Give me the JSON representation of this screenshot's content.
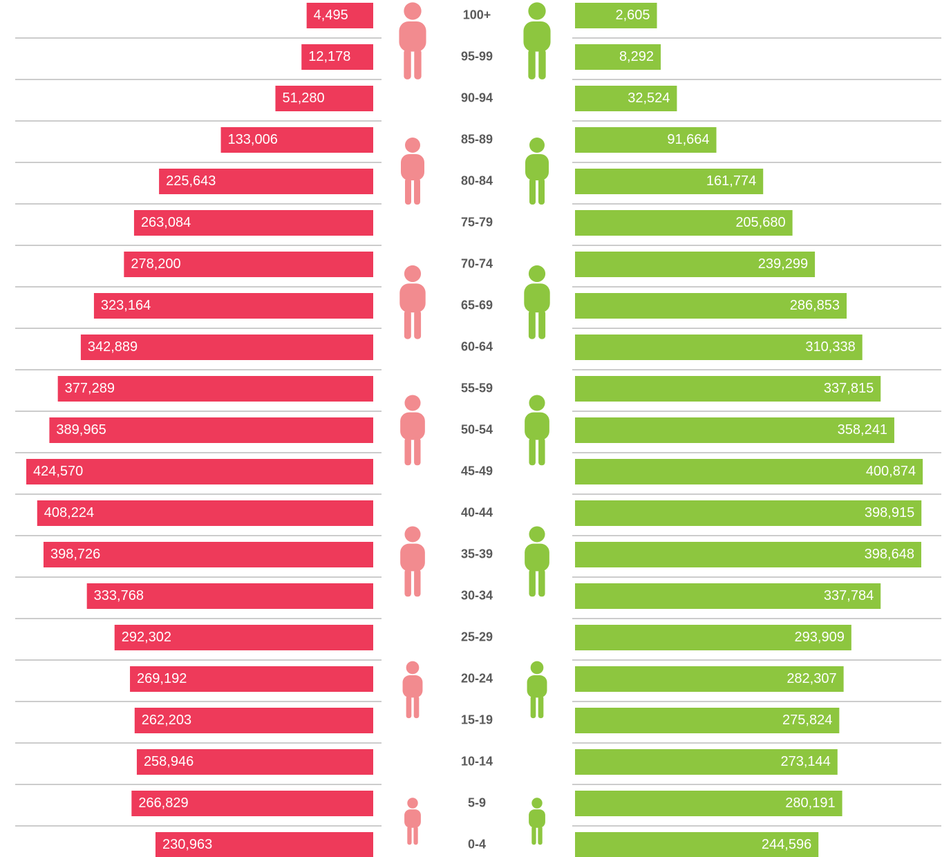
{
  "chart_data": {
    "type": "bar",
    "categories": [
      "100+",
      "95-99",
      "90-94",
      "85-89",
      "80-84",
      "75-79",
      "70-74",
      "65-69",
      "60-64",
      "55-59",
      "50-54",
      "45-49",
      "40-44",
      "35-39",
      "30-34",
      "25-29",
      "20-24",
      "15-19",
      "10-14",
      "5-9",
      "0-4"
    ],
    "series": [
      {
        "color": "#ee3a5a",
        "values": [
          4495,
          12178,
          51280,
          133006,
          225643,
          263084,
          278200,
          323164,
          342889,
          377289,
          389965,
          424570,
          408224,
          398726,
          333768,
          292302,
          269192,
          262203,
          258946,
          266829,
          230963
        ],
        "value_labels": [
          "4,495",
          "12,178",
          "51,280",
          "133,006",
          "225,643",
          "263,084",
          "278,200",
          "323,164",
          "342,889",
          "377,289",
          "389,965",
          "424,570",
          "408,224",
          "398,726",
          "333,768",
          "292,302",
          "269,192",
          "262,203",
          "258,946",
          "266,829",
          "230,963"
        ]
      },
      {
        "color": "#8dc63f",
        "values": [
          2605,
          8292,
          32524,
          91664,
          161774,
          205680,
          239299,
          286853,
          310338,
          337815,
          358241,
          400874,
          398915,
          398648,
          337784,
          293909,
          282307,
          275824,
          273144,
          280191,
          244596
        ],
        "value_labels": [
          "2,605",
          "8,292",
          "32,524",
          "91,664",
          "161,774",
          "205,680",
          "239,299",
          "286,853",
          "310,338",
          "337,815",
          "358,241",
          "400,874",
          "398,915",
          "398,648",
          "337,784",
          "293,909",
          "282,307",
          "275,824",
          "273,144",
          "280,191",
          "244,596"
        ]
      }
    ]
  }
}
